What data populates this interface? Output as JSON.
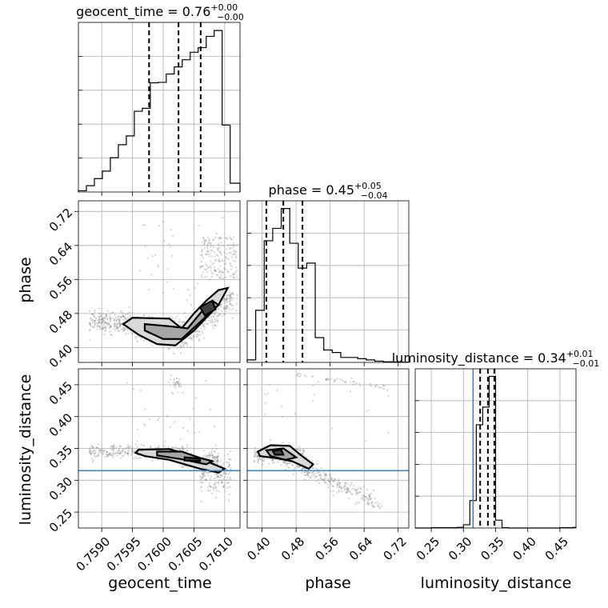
{
  "chart_data": {
    "type": "corner",
    "parameters": [
      {
        "key": "geocent_time",
        "label": "geocent_time",
        "range": [
          0.75862,
          0.76125
        ],
        "ticks": [
          0.759,
          0.7595,
          0.76,
          0.7605,
          0.761
        ],
        "tick_labels": [
          "0.7590",
          "0.7595",
          "0.7600",
          "0.7605",
          "0.7610"
        ],
        "title": {
          "main": "geocent_time = 0.76",
          "upper": "+0.00",
          "lower": "−0.00"
        },
        "quantiles": [
          0.75977,
          0.76025,
          0.76061
        ],
        "truth": null,
        "histogram": {
          "edges": [
            0.75862,
            0.75875,
            0.75888,
            0.75901,
            0.75914,
            0.75927,
            0.7594,
            0.75953,
            0.75966,
            0.75979,
            0.75992,
            0.76005,
            0.76018,
            0.76031,
            0.76044,
            0.76057,
            0.7607,
            0.76083,
            0.76096,
            0.76109,
            0.76125
          ],
          "counts": [
            0.3,
            1.5,
            3.2,
            5.0,
            8.2,
            11.3,
            13.4,
            19.3,
            20.0,
            26.1,
            26.2,
            28.2,
            29.9,
            31.6,
            33.4,
            34.5,
            37.2,
            38.6,
            16.0,
            2.1
          ]
        }
      },
      {
        "key": "phase",
        "label": "phase",
        "range": [
          0.365,
          0.745
        ],
        "ticks": [
          0.4,
          0.48,
          0.56,
          0.64,
          0.72
        ],
        "tick_labels": [
          "0.40",
          "0.48",
          "0.56",
          "0.64",
          "0.72"
        ],
        "title": {
          "main": "phase = 0.45",
          "upper": "+0.05",
          "lower": "−0.04"
        },
        "quantiles": [
          0.41,
          0.45,
          0.495
        ],
        "truth": null,
        "histogram": {
          "edges": [
            0.365,
            0.385,
            0.405,
            0.425,
            0.445,
            0.465,
            0.485,
            0.505,
            0.525,
            0.545,
            0.565,
            0.585,
            0.605,
            0.625,
            0.645,
            0.665,
            0.685,
            0.705,
            0.725,
            0.745
          ],
          "counts": [
            2,
            42,
            98,
            108,
            124,
            96,
            76,
            80,
            20,
            10,
            8,
            4,
            4,
            3,
            2,
            1,
            0.5,
            0.3,
            0.2
          ]
        }
      },
      {
        "key": "luminosity_distance",
        "label": "luminosity_distance",
        "range": [
          0.225,
          0.475
        ],
        "ticks": [
          0.25,
          0.3,
          0.35,
          0.4,
          0.45
        ],
        "tick_labels": [
          "0.25",
          "0.30",
          "0.35",
          "0.40",
          "0.45"
        ],
        "title": {
          "main": "luminosity_distance = 0.34",
          "upper": "+0.01",
          "lower": "−0.01"
        },
        "quantiles": [
          0.326,
          0.338,
          0.348
        ],
        "truth": 0.315,
        "histogram": {
          "edges": [
            0.225,
            0.25,
            0.27,
            0.29,
            0.3,
            0.31,
            0.32,
            0.33,
            0.34,
            0.35,
            0.36,
            0.37,
            0.4,
            0.45,
            0.47,
            0.475
          ],
          "counts": [
            0,
            0.5,
            0.5,
            1,
            5,
            42,
            158,
            185,
            232,
            12,
            0.5,
            0,
            0,
            0.5,
            1
          ]
        }
      }
    ],
    "truth_color": "#4682b4",
    "hist_color": "#000000"
  }
}
